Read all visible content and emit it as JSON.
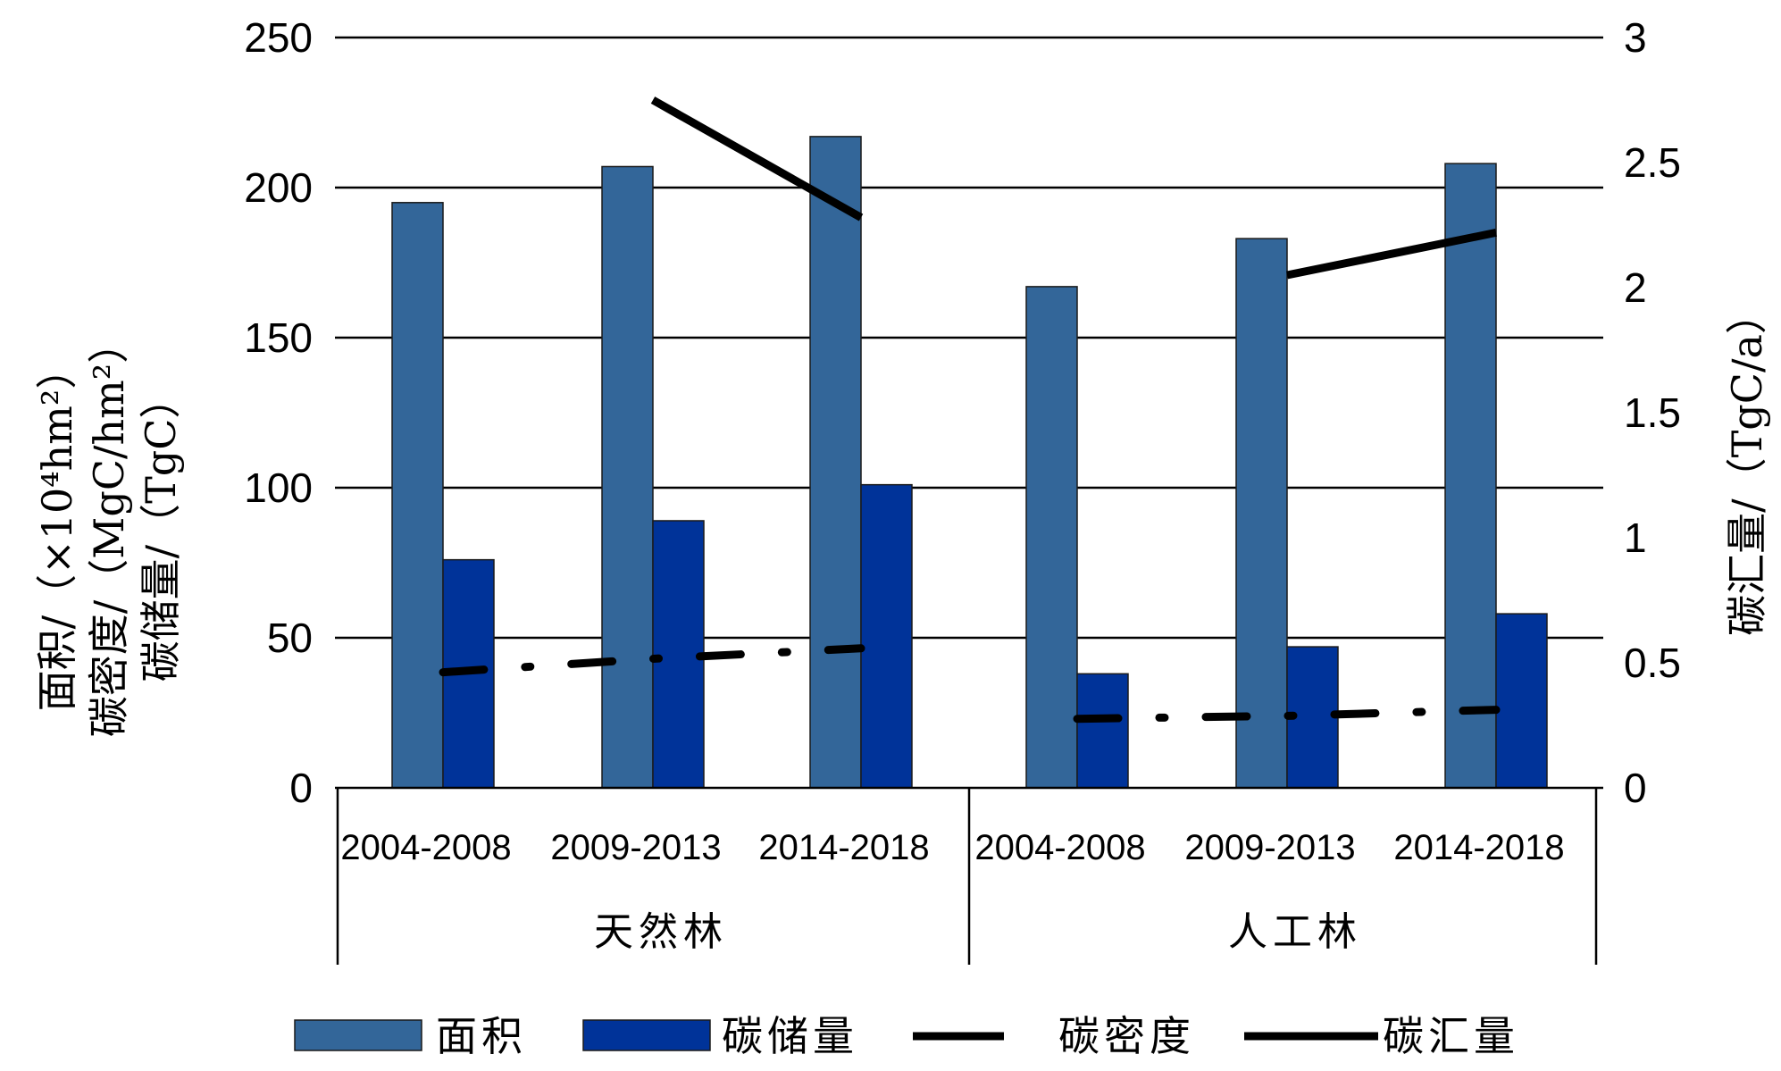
{
  "chart_data": {
    "type": "bar",
    "groups": [
      {
        "label": "天然林",
        "categories": [
          "2004-2008",
          "2009-2013",
          "2014-2018"
        ]
      },
      {
        "label": "人工林",
        "categories": [
          "2004-2008",
          "2009-2013",
          "2014-2018"
        ]
      }
    ],
    "categories": [
      "2004-2008",
      "2009-2013",
      "2014-2018",
      "2004-2008",
      "2009-2013",
      "2014-2018"
    ],
    "series": [
      {
        "name": "面积",
        "type": "bar",
        "axis": "left",
        "color": "#336699",
        "values": [
          195,
          207,
          217,
          167,
          183,
          208
        ]
      },
      {
        "name": "碳储量",
        "type": "bar",
        "axis": "left",
        "color": "#003399",
        "values": [
          76,
          89,
          101,
          38,
          47,
          58
        ]
      },
      {
        "name": "碳密度",
        "type": "line",
        "style": "dash-dot",
        "axis": "left",
        "color": "#000000",
        "values": [
          38.5,
          43.0,
          46.5,
          23.0,
          24.0,
          26.0
        ]
      },
      {
        "name": "碳汇量",
        "type": "line",
        "style": "solid",
        "axis": "right",
        "color": "#000000",
        "values": [
          null,
          2.75,
          2.28,
          null,
          2.05,
          2.22
        ]
      }
    ],
    "yaxis_left": {
      "label_lines": [
        "面积/（×10⁴hm²）",
        "碳密度/（MgC/hm²）",
        "碳储量/（TgC）"
      ],
      "ylim": [
        0,
        250
      ],
      "ticks": [
        "0",
        "50",
        "100",
        "150",
        "200",
        "250"
      ]
    },
    "yaxis_right": {
      "label": "碳汇量/（TgC/a）",
      "ylim": [
        0,
        3
      ],
      "ticks": [
        "0",
        "0.5",
        "1",
        "1.5",
        "2",
        "2.5",
        "3"
      ]
    },
    "grid": true,
    "legend": {
      "position": "bottom",
      "items": [
        {
          "label": "面积",
          "kind": "box",
          "color": "#336699"
        },
        {
          "label": "碳储量",
          "kind": "box",
          "color": "#003399"
        },
        {
          "label": "碳密度",
          "kind": "dash",
          "color": "#000000"
        },
        {
          "label": "碳汇量",
          "kind": "line",
          "color": "#000000"
        }
      ]
    }
  }
}
